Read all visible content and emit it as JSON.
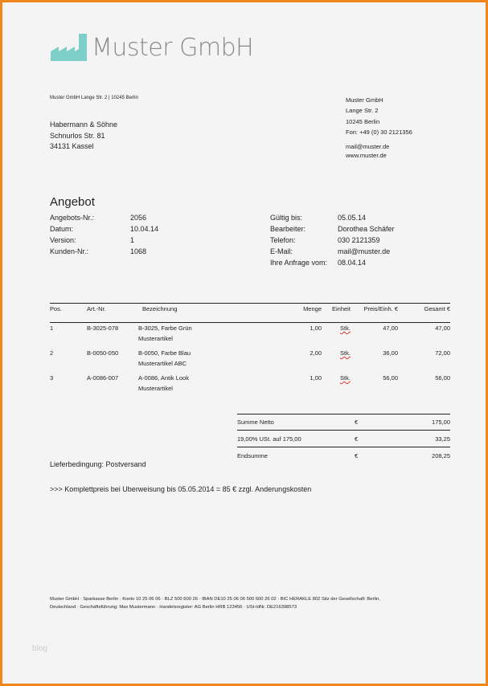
{
  "logo": {
    "text": "Muster GmbH",
    "color": "#7ecfc9"
  },
  "sender_line": "Muster GmbH Lange Str. 2 | 10245 Berlin",
  "recipient": [
    "Habermann & Söhne",
    "Schnurlos Str. 81",
    "34131 Kassel"
  ],
  "company": {
    "name": "Muster GmbH",
    "street": "Lange Str. 2",
    "city": "10245 Berlin",
    "phone": "Fon: +49 (0) 30 2121356",
    "email": "mail@muster.de",
    "web": "www.muster.de"
  },
  "title": "Angebot",
  "info_left": [
    {
      "label": "Angebots-Nr.:",
      "value": "2056"
    },
    {
      "label": "Datum:",
      "value": "10.04.14"
    },
    {
      "label": "Version:",
      "value": "1"
    },
    {
      "label": "Kunden-Nr.:",
      "value": "1068"
    }
  ],
  "info_right": [
    {
      "label": "Gültig bis:",
      "value": "05.05.14"
    },
    {
      "label": "Bearbeiter:",
      "value": "Dorothea Schäfer"
    },
    {
      "label": "Telefon:",
      "value": "030 2121359"
    },
    {
      "label": "E-Mail:",
      "value": "mail@muster.de"
    },
    {
      "label": "Ihre Anfrage vom:",
      "value": "08.04.14"
    }
  ],
  "table": {
    "headers": {
      "pos": "Pos.",
      "art": "Art.-Nr.",
      "bez": "Bezeichnung",
      "menge": "Menge",
      "einheit": "Einheit",
      "preis": "Preis/Einh. €",
      "gesamt": "Gesamt €"
    },
    "rows": [
      {
        "pos": "1",
        "art": "B-3025-078",
        "bez1": "B-3025,  Farbe Grün",
        "bez2": "Musterartikel",
        "menge": "1,00",
        "einheit": "Stk.",
        "preis": "47,00",
        "gesamt": "47,00"
      },
      {
        "pos": "2",
        "art": "B-0050-050",
        "bez1": "B-0050,  Farbe Blau",
        "bez2": "Musterartikel ABC",
        "menge": "2,00",
        "einheit": "Stk.",
        "preis": "36,00",
        "gesamt": "72,00"
      },
      {
        "pos": "3",
        "art": "A-0086-007",
        "bez1": "A-0086,  Antik Look",
        "bez2": "Musterartikel",
        "menge": "1,00",
        "einheit": "Stk.",
        "preis": "56,00",
        "gesamt": "56,00"
      }
    ]
  },
  "totals": [
    {
      "label": "Summe Netto",
      "currency": "€",
      "value": "175,00"
    },
    {
      "label": "19,00% USt. auf 175,00",
      "currency": "€",
      "value": "33,25"
    },
    {
      "label": "Endsumme",
      "currency": "€",
      "value": "208,25"
    }
  ],
  "delivery": "Lieferbedingung: Postversand",
  "note": ">>> Komplettpreis bei Uberweisung bis 05.05.2014 = 85 € zzgl. Anderungskosten",
  "footer": [
    "Muster GmbH · Sparkasse Berlin · Konto 10 25 06 06 · BLZ 500 600 26 · IBAN DE10 25 06 06 500 600 26 02 · BIC HERAKLE 802 Sitz der Gesellschaft: Berlin,",
    "Deutschland · Geschäftsführung: Max Mustermann · Handelsregister: AG Berlin HRB 123456 · USt-IdNr. DE216398573"
  ],
  "watermark": "blog"
}
